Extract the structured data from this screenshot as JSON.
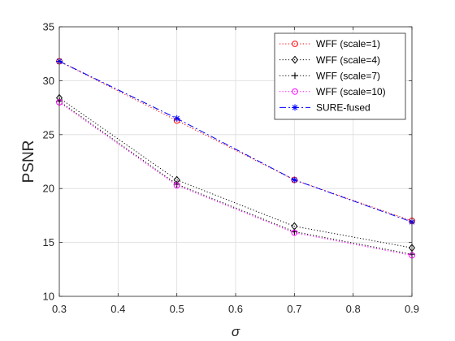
{
  "chart_data": {
    "type": "line",
    "title": "",
    "xlabel": "σ",
    "ylabel": "PSNR",
    "x": [
      0.3,
      0.5,
      0.7,
      0.9
    ],
    "xlim": [
      0.3,
      0.9
    ],
    "ylim": [
      10,
      35
    ],
    "xticks": [
      "0.3",
      "0.4",
      "0.5",
      "0.6",
      "0.7",
      "0.8",
      "0.9"
    ],
    "yticks": [
      "10",
      "15",
      "20",
      "25",
      "30",
      "35"
    ],
    "grid": true,
    "legend_position": "top-right",
    "series": [
      {
        "name": "WFF (scale=1)",
        "values": [
          31.8,
          26.3,
          20.8,
          17.0
        ],
        "color": "#ff0000",
        "marker": "circle",
        "line": "dotted"
      },
      {
        "name": "WFF (scale=4)",
        "values": [
          28.4,
          20.8,
          16.5,
          14.5
        ],
        "color": "#000000",
        "marker": "diamond",
        "line": "dotted"
      },
      {
        "name": "WFF (scale=7)",
        "values": [
          28.1,
          20.4,
          16.0,
          13.9
        ],
        "color": "#000000",
        "marker": "plus",
        "line": "dotted"
      },
      {
        "name": "WFF (scale=10)",
        "values": [
          28.0,
          20.3,
          15.9,
          13.8
        ],
        "color": "#ff00ff",
        "marker": "circle",
        "line": "dotted"
      },
      {
        "name": "SURE-fused",
        "values": [
          31.8,
          26.5,
          20.8,
          16.9
        ],
        "color": "#0000ff",
        "marker": "star",
        "line": "dashdot"
      }
    ]
  }
}
